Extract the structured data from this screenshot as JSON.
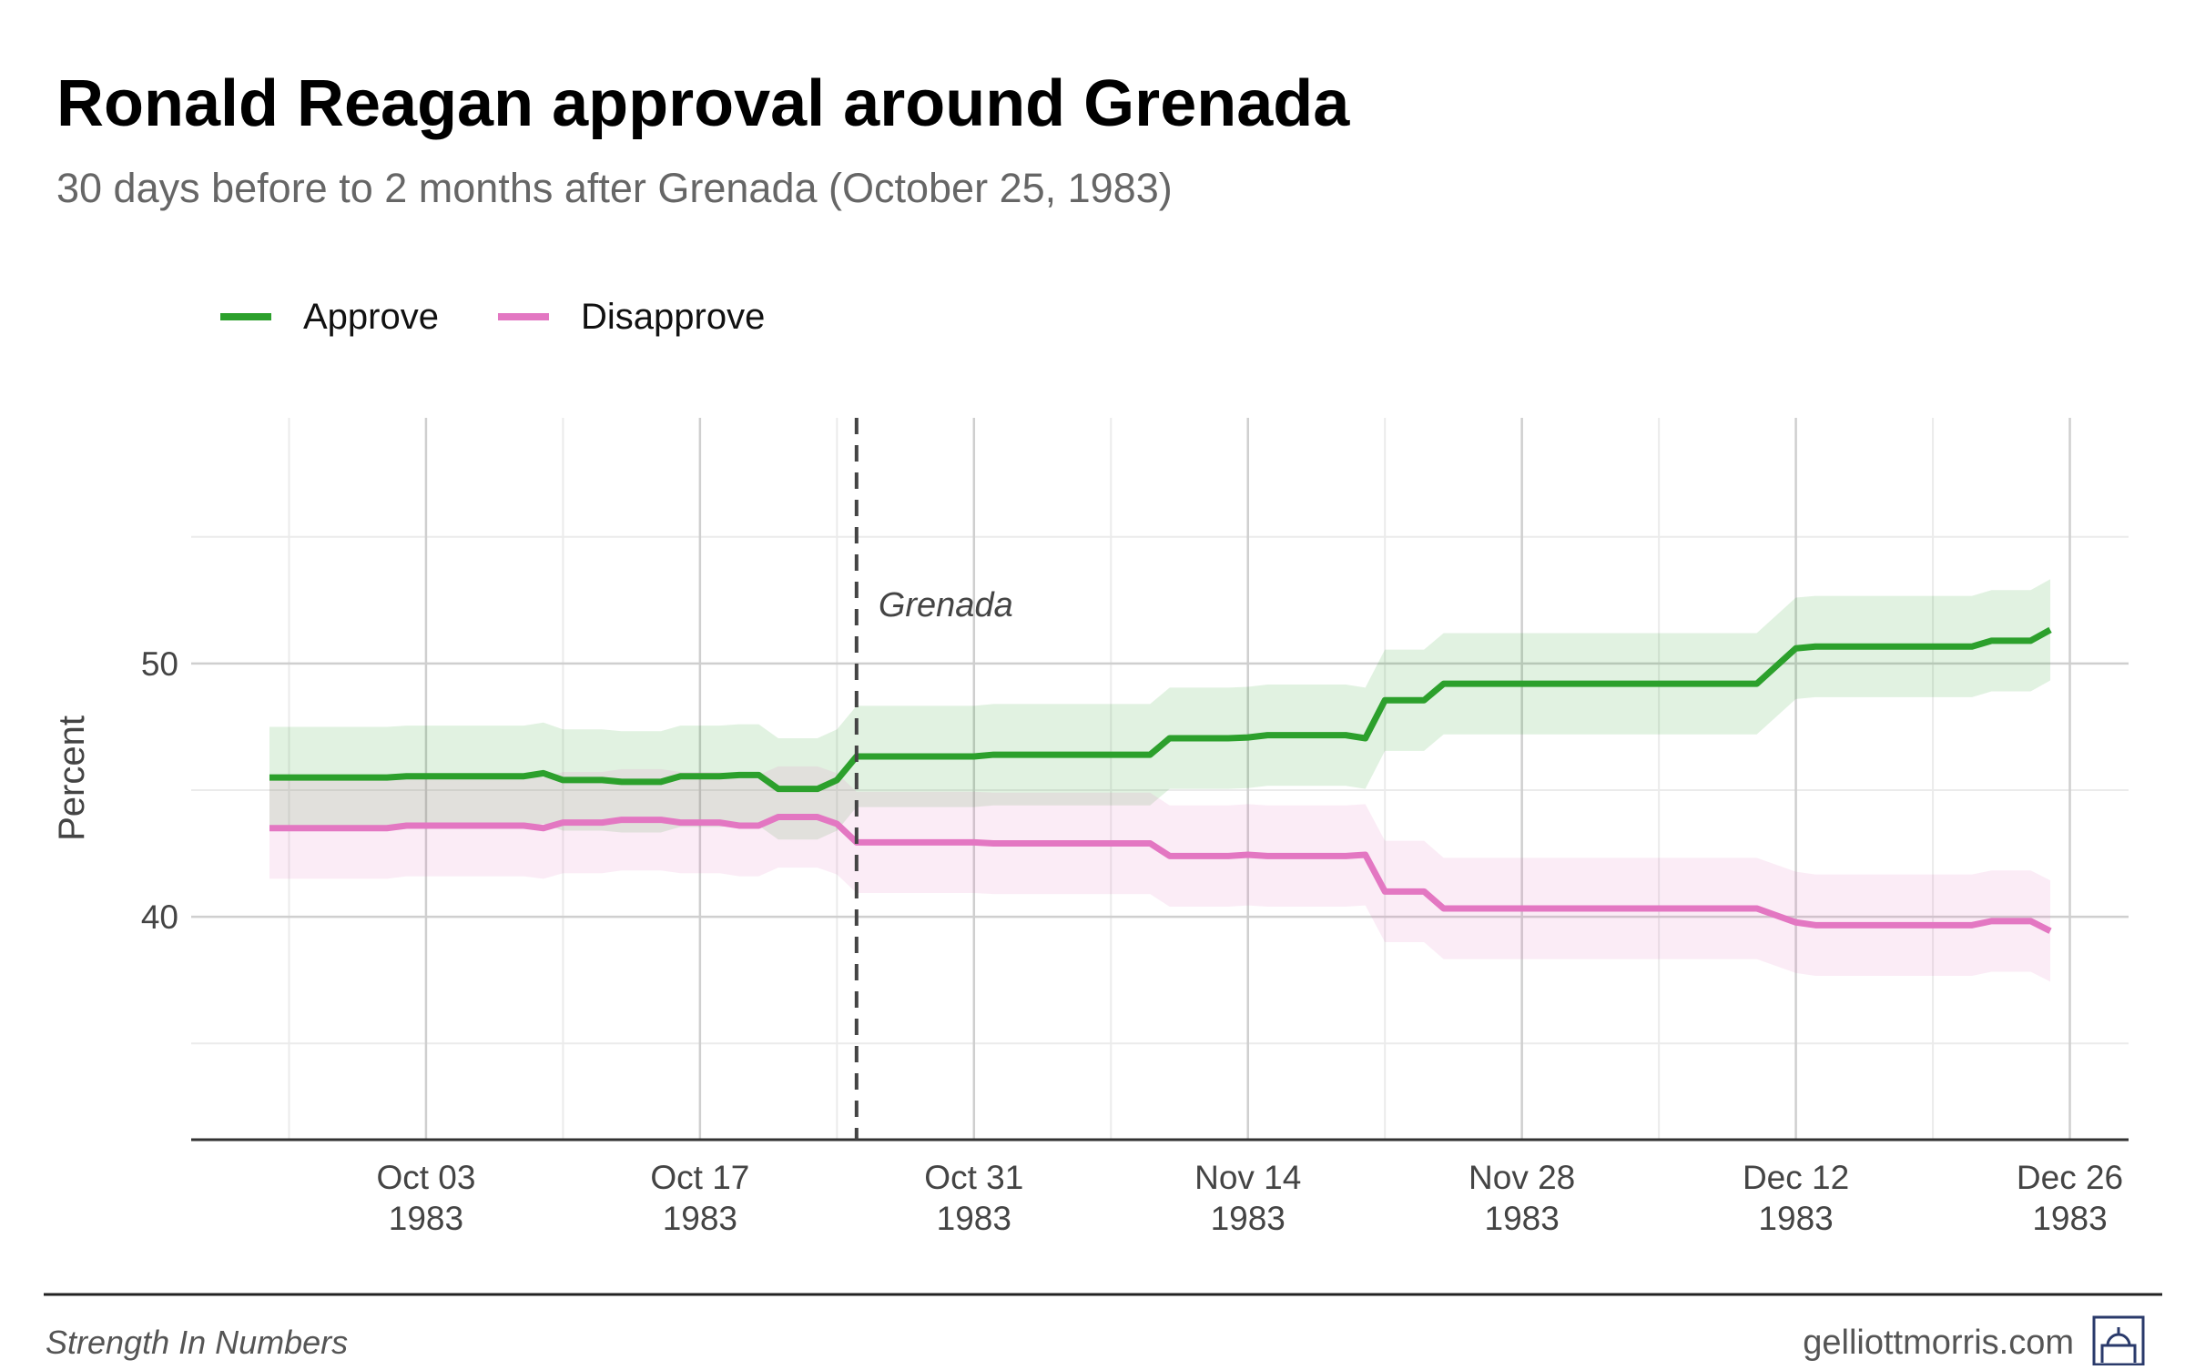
{
  "chart_data": {
    "type": "line",
    "title": "Ronald Reagan approval around Grenada",
    "subtitle": "30 days before to 2 months after Grenada (October 25, 1983)",
    "y_label": "Percent",
    "x": [
      "1983-09-25",
      "1983-10-01",
      "1983-10-02",
      "1983-10-08",
      "1983-10-09",
      "1983-10-10",
      "1983-10-12",
      "1983-10-13",
      "1983-10-15",
      "1983-10-16",
      "1983-10-18",
      "1983-10-19",
      "1983-10-20",
      "1983-10-21",
      "1983-10-23",
      "1983-10-24",
      "1983-10-25",
      "1983-10-31",
      "1983-11-01",
      "1983-11-09",
      "1983-11-10",
      "1983-11-13",
      "1983-11-14",
      "1983-11-15",
      "1983-11-19",
      "1983-11-20",
      "1983-11-21",
      "1983-11-23",
      "1983-11-24",
      "1983-12-10",
      "1983-12-12",
      "1983-12-13",
      "1983-12-21",
      "1983-12-22",
      "1983-12-24",
      "1983-12-25"
    ],
    "series": [
      {
        "name": "Approve",
        "color": "#2ca02c",
        "band": 2,
        "values": [
          45.5,
          45.5,
          45.55,
          45.55,
          45.67,
          45.4,
          45.4,
          45.33,
          45.33,
          45.55,
          45.55,
          45.6,
          45.6,
          45.05,
          45.05,
          45.4,
          46.33,
          46.33,
          46.4,
          46.4,
          47.05,
          47.05,
          47.08,
          47.17,
          47.17,
          47.05,
          48.55,
          48.55,
          49.2,
          49.2,
          50.6,
          50.67,
          50.67,
          50.9,
          50.9,
          51.33
        ]
      },
      {
        "name": "Disapprove",
        "color": "#e377c2",
        "band": 2,
        "values": [
          43.5,
          43.5,
          43.6,
          43.6,
          43.5,
          43.72,
          43.72,
          43.83,
          43.83,
          43.72,
          43.72,
          43.6,
          43.6,
          43.94,
          43.94,
          43.67,
          42.94,
          42.94,
          42.9,
          42.9,
          42.4,
          42.4,
          42.45,
          42.4,
          42.4,
          42.45,
          41,
          41,
          40.33,
          40.33,
          39.78,
          39.67,
          39.67,
          39.83,
          39.83,
          39.44
        ]
      }
    ],
    "xlim": [
      "1983-09-21",
      "1983-12-29"
    ],
    "xticks": [
      {
        "value": "1983-10-03",
        "label": "Oct 03\n1983"
      },
      {
        "value": "1983-10-17",
        "label": "Oct 17\n1983"
      },
      {
        "value": "1983-10-31",
        "label": "Oct 31\n1983"
      },
      {
        "value": "1983-11-14",
        "label": "Nov 14\n1983"
      },
      {
        "value": "1983-11-28",
        "label": "Nov 28\n1983"
      },
      {
        "value": "1983-12-12",
        "label": "Dec 12\n1983"
      },
      {
        "value": "1983-12-26",
        "label": "Dec 26\n1983"
      }
    ],
    "minor_xticks": [
      "1983-09-26",
      "1983-10-10",
      "1983-10-24",
      "1983-11-07",
      "1983-11-21",
      "1983-12-05",
      "1983-12-19"
    ],
    "ylim": [
      31.2,
      59.7
    ],
    "yticks": [
      40,
      50
    ],
    "minor_yticks": [
      35,
      45,
      55
    ],
    "grid": true,
    "legend": "top-left",
    "annotations": [
      {
        "x": "1983-10-25",
        "text": "Grenada"
      }
    ]
  },
  "footer": {
    "left": "Strength In Numbers",
    "right": "gelliottmorris.com"
  }
}
